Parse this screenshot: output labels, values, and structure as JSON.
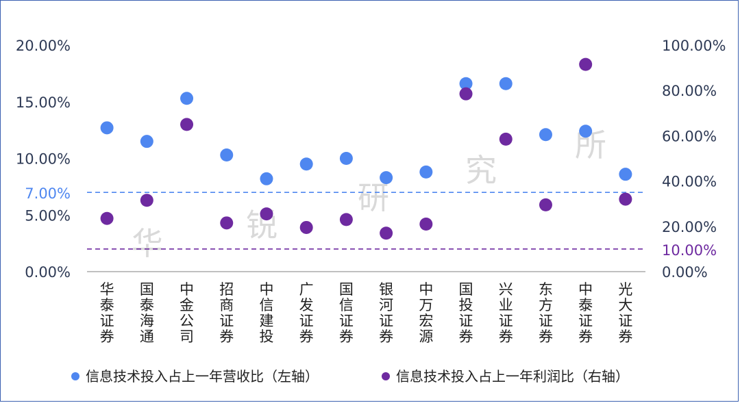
{
  "chart_data": {
    "type": "scatter",
    "categories": [
      "华泰证券",
      "国泰海通",
      "中金公司",
      "招商证券",
      "中信建投",
      "广发证券",
      "国信证券",
      "银河证券",
      "中万宏源",
      "国投证券",
      "兴业证券",
      "东方证券",
      "中泰证券",
      "光大证券"
    ],
    "series": [
      {
        "name": "信息技术投入占上一年营收比（左轴）",
        "axis": "left",
        "color": "#4f87f0",
        "values": [
          12.7,
          11.5,
          15.3,
          10.3,
          8.2,
          9.5,
          10.0,
          8.3,
          8.8,
          16.6,
          16.6,
          12.1,
          12.4,
          8.6
        ]
      },
      {
        "name": "信息技术投入占上一年利润比（右轴）",
        "axis": "right",
        "color": "#6e2aa0",
        "values": [
          23.5,
          31.5,
          65.0,
          21.5,
          25.5,
          19.5,
          23.0,
          17.0,
          21.0,
          78.5,
          58.5,
          29.5,
          91.5,
          32.0
        ]
      }
    ],
    "left_axis": {
      "ylim": [
        0,
        20
      ],
      "tick_labels": [
        "0.00%",
        "5.00%",
        "10.00%",
        "15.00%",
        "20.00%"
      ],
      "tick_values": [
        0,
        5,
        10,
        15,
        20
      ]
    },
    "right_axis": {
      "ylim": [
        0,
        100
      ],
      "tick_labels": [
        "0.00%",
        "20.00%",
        "40.00%",
        "60.00%",
        "80.00%",
        "100.00%"
      ],
      "tick_values": [
        0,
        20,
        40,
        60,
        80,
        100
      ]
    },
    "reference_lines": [
      {
        "axis": "left",
        "value": 7.0,
        "label": "7.00%",
        "color": "#4f87f0"
      },
      {
        "axis": "right",
        "value": 10.0,
        "label": "10.00%",
        "color": "#6e2aa0"
      }
    ],
    "watermark": "华锐研究所",
    "legend_position": "bottom",
    "grid": false
  }
}
